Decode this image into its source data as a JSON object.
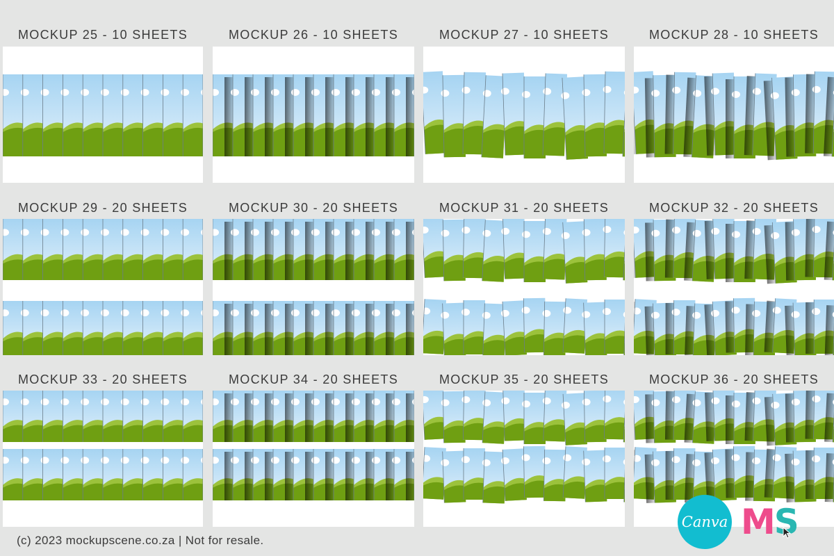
{
  "mockups": [
    {
      "label": "MOCKUP 25 - 10 SHEETS",
      "style": "flat",
      "shadow": false,
      "rows": 1,
      "sheets": 10
    },
    {
      "label": "MOCKUP 26 - 10 SHEETS",
      "style": "flat",
      "shadow": true,
      "rows": 1,
      "sheets": 10
    },
    {
      "label": "MOCKUP 27 - 10 SHEETS",
      "style": "tilted",
      "shadow": false,
      "rows": 1,
      "sheets": 10
    },
    {
      "label": "MOCKUP 28 - 10 SHEETS",
      "style": "tilted",
      "shadow": true,
      "rows": 1,
      "sheets": 10
    },
    {
      "label": "MOCKUP 29 - 20 SHEETS",
      "style": "flat",
      "shadow": false,
      "rows": 2,
      "sheets": 20
    },
    {
      "label": "MOCKUP 30 - 20 SHEETS",
      "style": "flat",
      "shadow": true,
      "rows": 2,
      "sheets": 20
    },
    {
      "label": "MOCKUP 31 - 20 SHEETS",
      "style": "tilted",
      "shadow": false,
      "rows": 2,
      "sheets": 20
    },
    {
      "label": "MOCKUP 32 - 20 SHEETS",
      "style": "tilted",
      "shadow": true,
      "rows": 2,
      "sheets": 20
    },
    {
      "label": "MOCKUP 33 - 20 SHEETS",
      "style": "flat",
      "shadow": false,
      "rows": 2,
      "sheets": 20
    },
    {
      "label": "MOCKUP 34 - 20 SHEETS",
      "style": "flat",
      "shadow": true,
      "rows": 2,
      "sheets": 20
    },
    {
      "label": "MOCKUP 35 - 20 SHEETS",
      "style": "tilted",
      "shadow": false,
      "rows": 2,
      "sheets": 20
    },
    {
      "label": "MOCKUP 36 - 20 SHEETS",
      "style": "tilted",
      "shadow": true,
      "rows": 2,
      "sheets": 20
    }
  ],
  "footer": "(c) 2023 mockupscene.co.za | Not for resale.",
  "logos": {
    "canva": "Canva",
    "ms_m": "M",
    "ms_s": "S"
  },
  "colors": {
    "background": "#e4e5e4",
    "sky_top": "#a6d4f2",
    "sky_bottom": "#e3f1fb",
    "grass": "#6f9f12",
    "grass_light": "#9cc23c",
    "canva": "#12bdd0",
    "ms_pink": "#ee4c8c",
    "ms_teal": "#2ab7b2"
  }
}
